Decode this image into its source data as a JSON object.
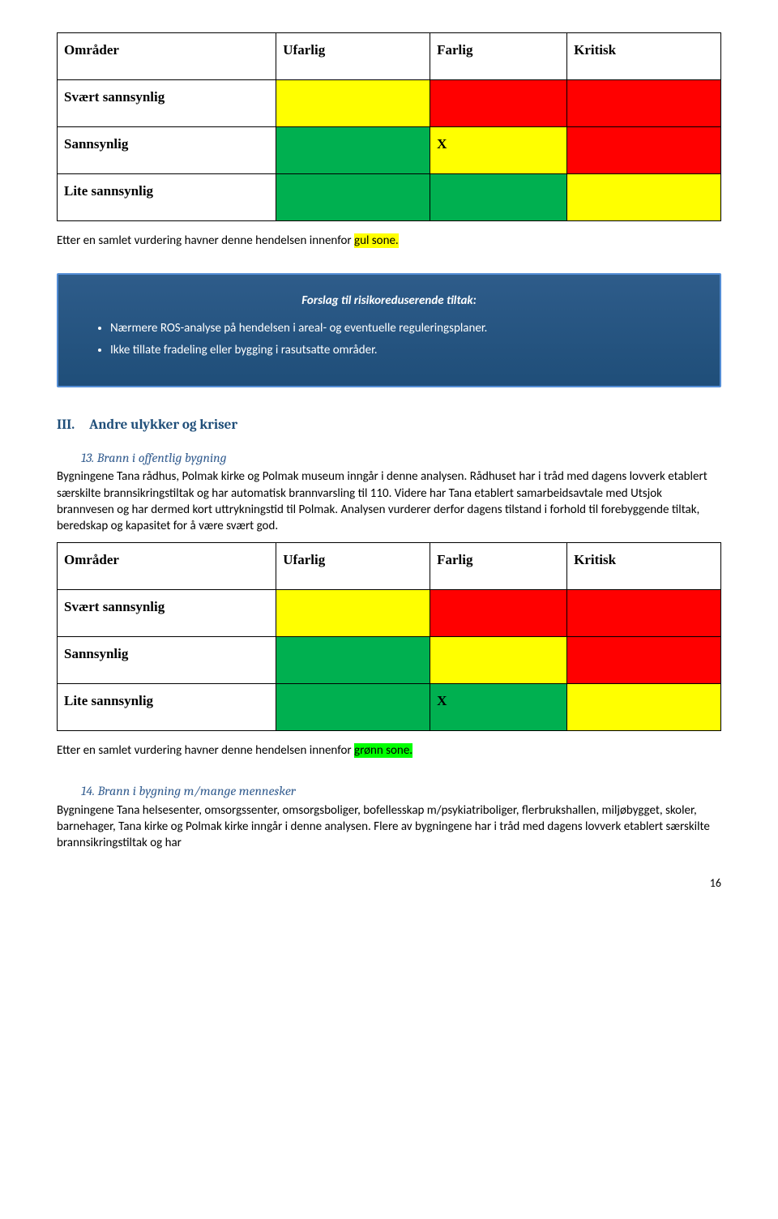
{
  "matrix1": {
    "headers": [
      "Områder",
      "Ufarlig",
      "Farlig",
      "Kritisk"
    ],
    "rows": [
      {
        "label": "Svært sannsynlig",
        "cells": [
          {
            "bg": "#ffff00",
            "text": ""
          },
          {
            "bg": "#ff0000",
            "text": ""
          },
          {
            "bg": "#ff0000",
            "text": ""
          }
        ]
      },
      {
        "label": "Sannsynlig",
        "cells": [
          {
            "bg": "#00b050",
            "text": ""
          },
          {
            "bg": "#ffff00",
            "text": "X"
          },
          {
            "bg": "#ff0000",
            "text": ""
          }
        ]
      },
      {
        "label": "Lite sannsynlig",
        "cells": [
          {
            "bg": "#00b050",
            "text": ""
          },
          {
            "bg": "#00b050",
            "text": ""
          },
          {
            "bg": "#ffff00",
            "text": ""
          }
        ]
      }
    ]
  },
  "summary1": {
    "prefix": "Etter en samlet vurdering havner denne hendelsen innenfor ",
    "highlight": "gul sone.",
    "highlight_bg": "#ffff00"
  },
  "callout": {
    "title": "Forslag til risikoreduserende tiltak:",
    "items": [
      "Nærmere ROS-analyse på hendelsen i areal- og eventuelle reguleringsplaner.",
      "Ikke tillate fradeling eller bygging i rasutsatte områder."
    ]
  },
  "sectionIII": {
    "num": "III.",
    "title": "Andre ulykker og kriser"
  },
  "sub13": {
    "num": "13.",
    "title": "Brann i offentlig bygning"
  },
  "para13": "Bygningene Tana rådhus, Polmak kirke og Polmak museum inngår i denne analysen. Rådhuset har i tråd med dagens lovverk etablert særskilte brannsikringstiltak og har automatisk brannvarsling til 110. Videre har Tana etablert samarbeidsavtale med Utsjok brannvesen og har dermed kort uttrykningstid til Polmak. Analysen vurderer derfor dagens tilstand i forhold til forebyggende tiltak, beredskap og kapasitet for å være svært god.",
  "matrix2": {
    "headers": [
      "Områder",
      "Ufarlig",
      "Farlig",
      "Kritisk"
    ],
    "rows": [
      {
        "label": "Svært sannsynlig",
        "cells": [
          {
            "bg": "#ffff00",
            "text": ""
          },
          {
            "bg": "#ff0000",
            "text": ""
          },
          {
            "bg": "#ff0000",
            "text": ""
          }
        ]
      },
      {
        "label": "Sannsynlig",
        "cells": [
          {
            "bg": "#00b050",
            "text": ""
          },
          {
            "bg": "#ffff00",
            "text": ""
          },
          {
            "bg": "#ff0000",
            "text": ""
          }
        ]
      },
      {
        "label": "Lite sannsynlig",
        "cells": [
          {
            "bg": "#00b050",
            "text": ""
          },
          {
            "bg": "#00b050",
            "text": "X"
          },
          {
            "bg": "#ffff00",
            "text": ""
          }
        ]
      }
    ]
  },
  "summary2": {
    "prefix": "Etter en samlet vurdering havner denne hendelsen innenfor ",
    "highlight": "grønn sone.",
    "highlight_bg": "#00ff00"
  },
  "sub14": {
    "num": "14.",
    "title": "Brann i bygning m/mange mennesker"
  },
  "para14": "Bygningene Tana helsesenter, omsorgssenter, omsorgsboliger, bofellesskap m/psykiatriboliger, flerbrukshallen, miljøbygget, skoler, barnehager, Tana kirke og Polmak kirke inngår i denne analysen. Flere av bygningene har i tråd med dagens lovverk etablert særskilte brannsikringstiltak og har",
  "pageNumber": "16"
}
